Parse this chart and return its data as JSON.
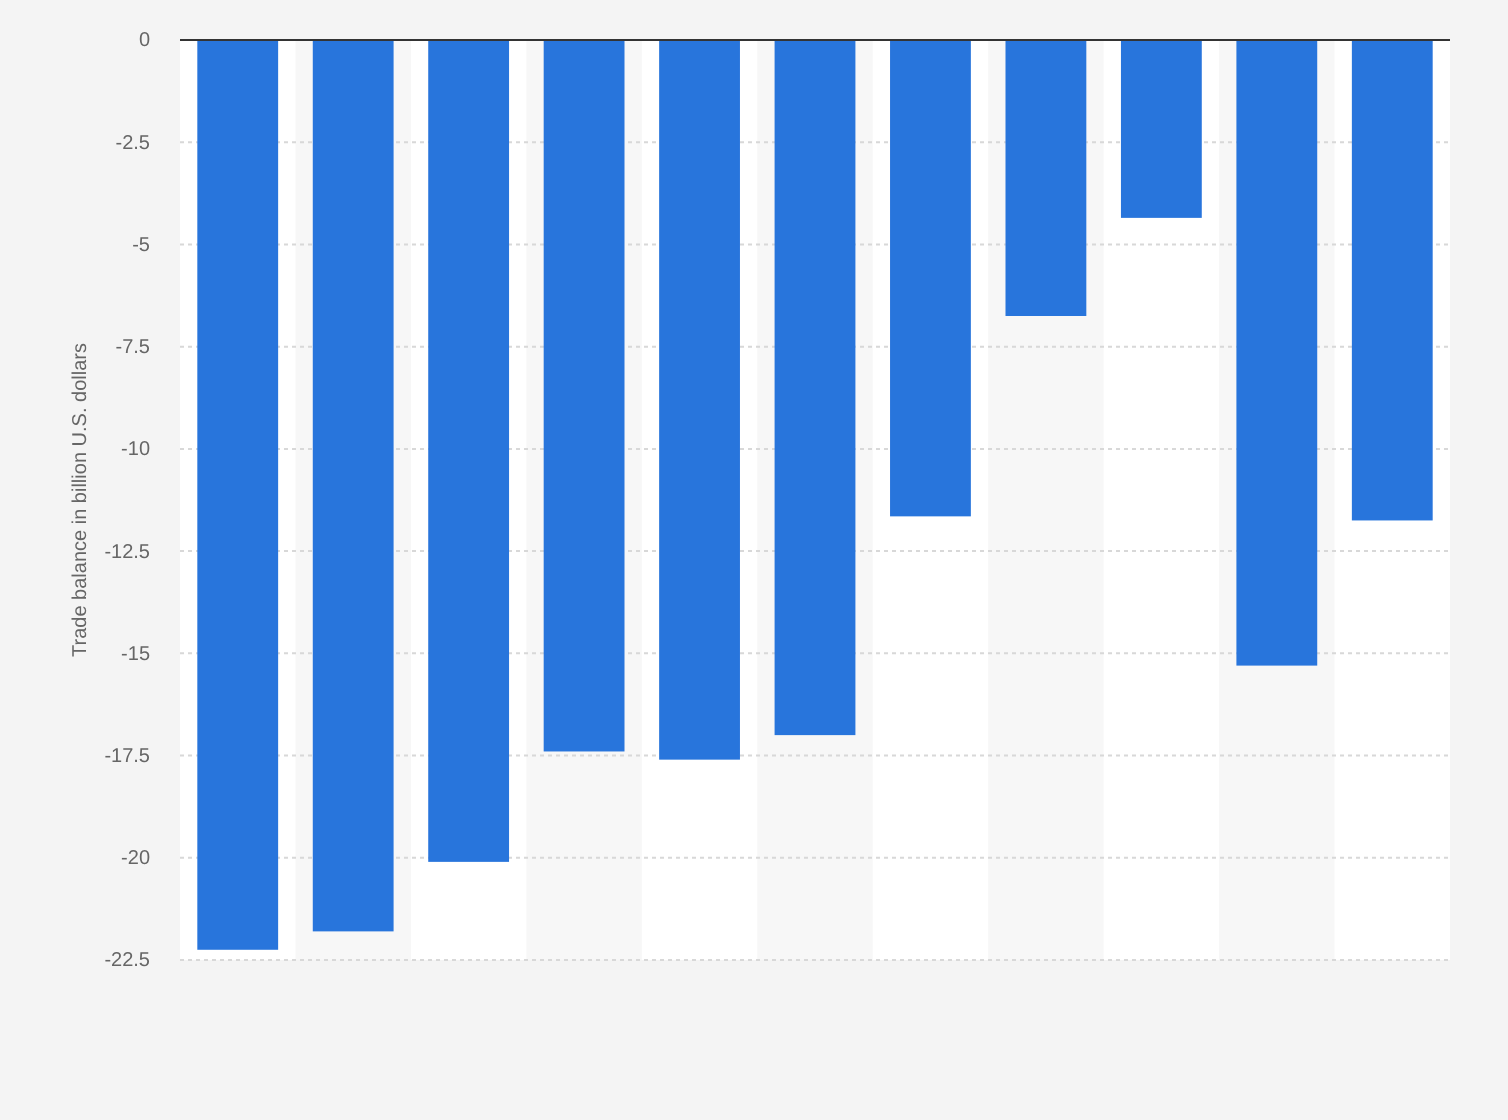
{
  "chart_data": {
    "type": "bar",
    "ylabel": "Trade balance in billion U.S. dollars",
    "categories": [
      null,
      null,
      null,
      null,
      null,
      null,
      null,
      null,
      null,
      null,
      null
    ],
    "values": [
      -22.25,
      -21.8,
      -20.1,
      -17.4,
      -17.6,
      -17.0,
      -11.65,
      -6.75,
      -4.35,
      -15.3,
      -11.75
    ],
    "color": "#2875dc",
    "ylim": [
      -22.5,
      0
    ],
    "yticks": [
      0,
      -2.5,
      -5,
      -7.5,
      -10,
      -12.5,
      -15,
      -17.5,
      -20,
      -22.5
    ],
    "grid": "y"
  }
}
